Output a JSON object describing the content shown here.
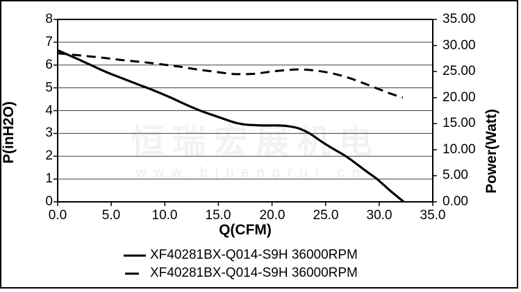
{
  "chart_data": {
    "type": "line",
    "title": "",
    "xlabel": "Q(CFM)",
    "ylabel_left": "P(inH2O)",
    "ylabel_right": "Power(Watt)",
    "xlim": [
      0,
      35
    ],
    "ylim_left": [
      0,
      8
    ],
    "ylim_right": [
      0,
      35
    ],
    "x_ticks": [
      "0.0",
      "5.0",
      "10.0",
      "15.0",
      "20.0",
      "25.0",
      "30.0",
      "35.0"
    ],
    "y_ticks_left": [
      "8",
      "7",
      "6",
      "5",
      "4",
      "3",
      "2",
      "1",
      "0"
    ],
    "y_ticks_right": [
      "35.00",
      "30.00",
      "25.00",
      "20.00",
      "15.00",
      "10.00",
      "5.00",
      "0.00"
    ],
    "grid": "horizontal lines at every left-axis integer",
    "legend_position": "below chart, left-aligned",
    "series": [
      {
        "name": "XF40281BX-Q014-S9H 36000RPM",
        "axis": "left",
        "line_style": "solid",
        "color": "#000000",
        "x": [
          0,
          1.5,
          3,
          4.5,
          6,
          7.5,
          9,
          10.5,
          12,
          13.3,
          15,
          16.5,
          17.5,
          18.5,
          19.5,
          20.5,
          21.5,
          22.5,
          23.5,
          24.7,
          25.8,
          26.9,
          28,
          29,
          29.8,
          31,
          32.3
        ],
        "y": [
          6.65,
          6.34,
          6.02,
          5.7,
          5.42,
          5.15,
          4.88,
          4.58,
          4.26,
          4.0,
          3.72,
          3.48,
          3.39,
          3.36,
          3.35,
          3.35,
          3.32,
          3.22,
          3.0,
          2.62,
          2.3,
          2.0,
          1.62,
          1.27,
          1.0,
          0.5,
          0.0
        ]
      },
      {
        "name": "XF40281BX-Q014-S9H 36000RPM",
        "axis": "right",
        "line_style": "dashed",
        "color": "#000000",
        "x": [
          0,
          2,
          4,
          6,
          8,
          10,
          11.5,
          13,
          14.5,
          16,
          17,
          18.5,
          20,
          21.5,
          22.5,
          24,
          25.5,
          27,
          28.5,
          30,
          31,
          32.2
        ],
        "y": [
          28.5,
          28.1,
          27.7,
          27.2,
          26.8,
          26.3,
          25.9,
          25.4,
          25.0,
          24.6,
          24.5,
          24.6,
          25.0,
          25.3,
          25.4,
          25.2,
          24.7,
          23.9,
          22.8,
          21.6,
          20.8,
          20.0
        ]
      }
    ]
  },
  "legend": {
    "items": [
      {
        "label": "XF40281BX-Q014-S9H 36000RPM",
        "style": "solid"
      },
      {
        "label": "XF40281BX-Q014-S9H 36000RPM",
        "style": "dashed"
      }
    ]
  },
  "watermark": {
    "line1": "恒瑞宏展机电",
    "line2": "www.bjhengrui.cn"
  },
  "colors": {
    "curve": "#000000",
    "gridline": "#3d3d3d",
    "border": "#000000",
    "background": "#ffffff"
  }
}
